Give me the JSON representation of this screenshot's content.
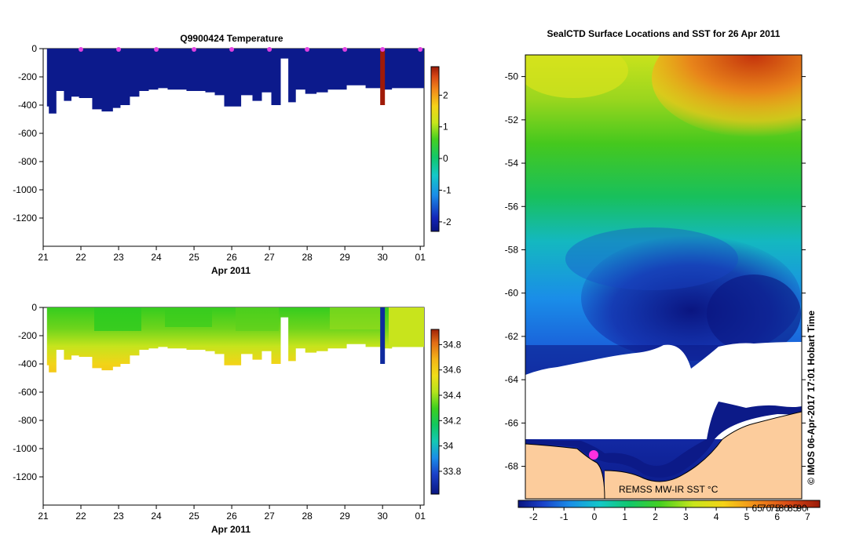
{
  "chart_data": [
    {
      "type": "heatmap",
      "title": "Q9900424  Temperature",
      "xlabel": "Apr 2011",
      "x_ticks": [
        "21",
        "22",
        "23",
        "24",
        "25",
        "26",
        "27",
        "28",
        "29",
        "30",
        "01"
      ],
      "y_ticks": [
        "0",
        "-200",
        "-400",
        "-600",
        "-800",
        "-1000",
        "-1200"
      ],
      "ylim": [
        -1400,
        0
      ],
      "xlim": [
        21,
        31.1
      ],
      "colorbar_ticks": [
        "2",
        "1",
        "0",
        "-1",
        "-2"
      ],
      "colorbar_range": [
        -2.3,
        2.9
      ],
      "profile_markers": [
        22,
        23,
        24,
        25,
        26,
        27,
        28,
        29,
        30,
        31
      ],
      "profile_depth": [
        [
          21.15,
          -410
        ],
        [
          21.35,
          -460
        ],
        [
          21.55,
          -300
        ],
        [
          21.75,
          -370
        ],
        [
          21.95,
          -340
        ],
        [
          22.3,
          -350
        ],
        [
          22.55,
          -430
        ],
        [
          22.85,
          -445
        ],
        [
          23.05,
          -420
        ],
        [
          23.3,
          -400
        ],
        [
          23.55,
          -340
        ],
        [
          23.8,
          -300
        ],
        [
          24.05,
          -290
        ],
        [
          24.3,
          -280
        ],
        [
          24.8,
          -290
        ],
        [
          25.3,
          -300
        ],
        [
          25.55,
          -310
        ],
        [
          25.8,
          -330
        ],
        [
          26.25,
          -410
        ],
        [
          26.55,
          -330
        ],
        [
          26.8,
          -370
        ],
        [
          27.05,
          -310
        ],
        [
          27.3,
          -400
        ],
        [
          27.5,
          -70
        ],
        [
          27.7,
          -380
        ],
        [
          27.95,
          -290
        ],
        [
          28.25,
          -320
        ],
        [
          28.55,
          -310
        ],
        [
          28.8,
          -290
        ],
        [
          29.05,
          -290
        ],
        [
          29.55,
          -260
        ],
        [
          29.95,
          -280
        ],
        [
          30.25,
          -290
        ],
        [
          30.5,
          -280
        ],
        [
          30.75,
          -280
        ],
        [
          31.1,
          -280
        ]
      ],
      "anomaly_profile": {
        "x": 30,
        "depth": -400,
        "value": 2.8
      }
    },
    {
      "type": "heatmap",
      "title": "",
      "xlabel": "Apr 2011",
      "x_ticks": [
        "21",
        "22",
        "23",
        "24",
        "25",
        "26",
        "27",
        "28",
        "29",
        "30",
        "01"
      ],
      "y_ticks": [
        "0",
        "-200",
        "-400",
        "-600",
        "-800",
        "-1000",
        "-1200"
      ],
      "ylim": [
        -1400,
        0
      ],
      "xlim": [
        21,
        31.1
      ],
      "colorbar_ticks": [
        "34.8",
        "34.6",
        "34.4",
        "34.2",
        "34",
        "33.8"
      ],
      "colorbar_range": [
        33.62,
        34.92
      ],
      "anomaly_profile": {
        "x": 30,
        "depth": -400,
        "value": 33.7
      }
    },
    {
      "type": "heatmap",
      "title": "SealCTD Surface Locations and SST for 26 Apr 2011",
      "y_ticks": [
        "-50",
        "-52",
        "-54",
        "-56",
        "-58",
        "-60",
        "-62",
        "-64",
        "-66",
        "-68"
      ],
      "ylim": [
        -69.5,
        -49
      ],
      "xlim": [
        -65,
        90
      ],
      "overlay_label": "REMSS MW-IR SST °C",
      "colorbar_tick_labels": [
        "-2",
        "-1",
        "0",
        "1",
        "2",
        "3",
        "4",
        "5",
        "6",
        "7"
      ],
      "colorbar_overlay_labels": [
        "65",
        "70",
        "75",
        "80",
        "85",
        "90"
      ],
      "colorbar_range": [
        -2.5,
        7.4
      ],
      "credit": "© IMOS 06-Apr-2017 17:01 Hobart Time"
    }
  ]
}
